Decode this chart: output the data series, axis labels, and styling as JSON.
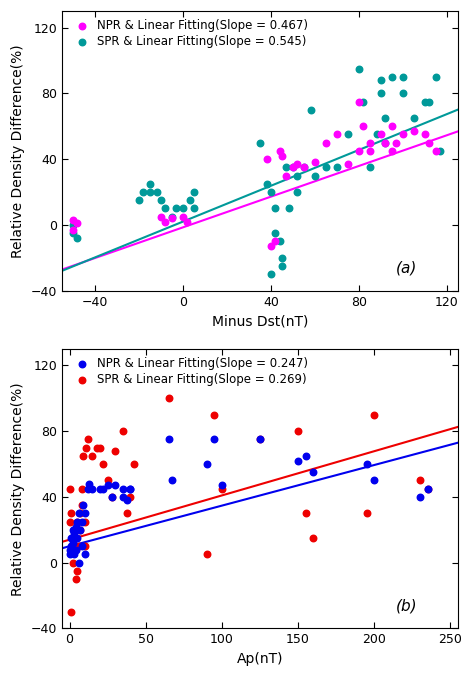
{
  "panel_a": {
    "xlabel": "Minus Dst(nT)",
    "ylabel": "Relative Density Difference(%)",
    "xlim": [
      -55,
      125
    ],
    "ylim": [
      -40,
      130
    ],
    "xticks": [
      -40,
      0,
      40,
      80,
      120
    ],
    "yticks": [
      -40,
      0,
      40,
      80,
      120
    ],
    "npr_color": "#FF00FF",
    "spr_color": "#009999",
    "npr_slope": 0.467,
    "npr_intercept": -1.5,
    "spr_slope": 0.545,
    "spr_intercept": 2.0,
    "npr_x": [
      -50,
      -50,
      -48,
      -10,
      -8,
      -5,
      0,
      2,
      38,
      40,
      42,
      44,
      45,
      47,
      50,
      52,
      55,
      60,
      65,
      70,
      75,
      80,
      80,
      82,
      85,
      85,
      90,
      92,
      95,
      95,
      97,
      100,
      105,
      110,
      112,
      115
    ],
    "npr_y": [
      3,
      -3,
      1,
      5,
      2,
      4,
      5,
      2,
      40,
      -13,
      -10,
      45,
      42,
      30,
      35,
      37,
      35,
      38,
      50,
      55,
      37,
      75,
      45,
      60,
      50,
      45,
      55,
      50,
      60,
      45,
      50,
      55,
      57,
      55,
      50,
      45
    ],
    "spr_x": [
      -50,
      -48,
      -50,
      -20,
      -18,
      -15,
      -15,
      -12,
      -10,
      -8,
      -5,
      -3,
      0,
      3,
      5,
      5,
      35,
      38,
      40,
      40,
      42,
      42,
      44,
      45,
      45,
      47,
      48,
      50,
      52,
      52,
      55,
      58,
      60,
      65,
      70,
      75,
      80,
      82,
      85,
      88,
      90,
      90,
      92,
      92,
      95,
      100,
      100,
      105,
      110,
      112,
      115,
      117
    ],
    "spr_y": [
      0,
      -8,
      -5,
      15,
      20,
      20,
      25,
      20,
      15,
      10,
      5,
      10,
      10,
      15,
      20,
      10,
      50,
      25,
      20,
      -30,
      10,
      -5,
      -10,
      -25,
      -20,
      35,
      10,
      35,
      30,
      20,
      35,
      70,
      30,
      35,
      35,
      55,
      95,
      75,
      35,
      55,
      88,
      80,
      65,
      50,
      90,
      90,
      80,
      65,
      75,
      75,
      90,
      45
    ]
  },
  "panel_b": {
    "xlabel": "Ap(nT)",
    "ylabel": "Relative Density Difference(%)",
    "xlim": [
      -5,
      255
    ],
    "ylim": [
      -40,
      130
    ],
    "xticks": [
      0,
      50,
      100,
      150,
      200,
      250
    ],
    "yticks": [
      -40,
      0,
      40,
      80,
      120
    ],
    "npr_color": "#0000EE",
    "spr_color": "#EE0000",
    "npr_slope": 0.247,
    "npr_intercept": 10.0,
    "spr_slope": 0.269,
    "spr_intercept": 14.0,
    "npr_x": [
      0,
      0,
      1,
      1,
      2,
      2,
      3,
      3,
      4,
      4,
      5,
      5,
      6,
      6,
      7,
      8,
      8,
      9,
      10,
      10,
      12,
      13,
      15,
      20,
      22,
      25,
      28,
      30,
      35,
      35,
      38,
      40,
      40,
      65,
      67,
      90,
      95,
      100,
      125,
      150,
      155,
      160,
      195,
      200,
      230,
      235
    ],
    "npr_y": [
      5,
      8,
      15,
      10,
      12,
      20,
      18,
      5,
      22,
      8,
      25,
      15,
      30,
      0,
      20,
      25,
      10,
      35,
      30,
      5,
      45,
      48,
      45,
      45,
      45,
      47,
      40,
      47,
      45,
      40,
      38,
      45,
      45,
      75,
      50,
      60,
      75,
      47,
      75,
      62,
      65,
      55,
      60,
      50,
      40,
      45
    ],
    "spr_x": [
      0,
      0,
      1,
      1,
      2,
      2,
      3,
      3,
      4,
      4,
      5,
      5,
      6,
      7,
      7,
      8,
      8,
      9,
      10,
      10,
      11,
      12,
      15,
      18,
      20,
      22,
      25,
      28,
      30,
      35,
      38,
      40,
      42,
      65,
      90,
      95,
      100,
      125,
      150,
      155,
      160,
      195,
      200,
      230,
      235
    ],
    "spr_y": [
      25,
      45,
      30,
      -30,
      0,
      10,
      15,
      20,
      10,
      -10,
      25,
      -5,
      10,
      30,
      20,
      35,
      45,
      65,
      25,
      10,
      70,
      75,
      65,
      70,
      70,
      60,
      50,
      40,
      68,
      80,
      30,
      40,
      60,
      100,
      5,
      90,
      45,
      75,
      80,
      30,
      15,
      30,
      90,
      50,
      45
    ]
  },
  "background_color": "#ffffff",
  "scatter_size": 22,
  "line_width": 1.5,
  "font_size": 10,
  "tick_font_size": 9,
  "legend_font_size": 8.5
}
